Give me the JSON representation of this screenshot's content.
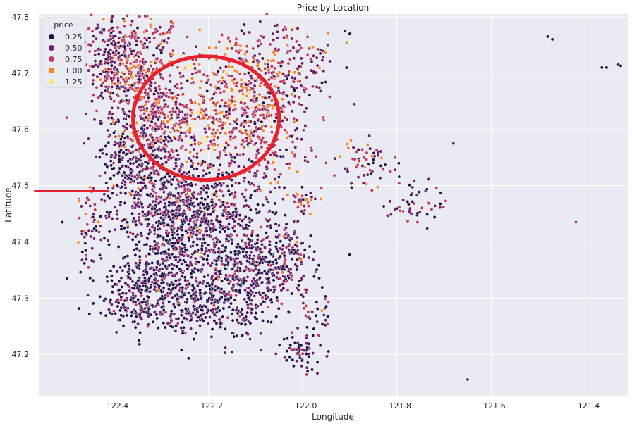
{
  "chart_data": {
    "type": "scatter",
    "title": "Price by Location",
    "xlabel": "Longitude",
    "ylabel": "Latitude",
    "xlim": [
      -122.56,
      -121.31
    ],
    "ylim": [
      47.125,
      47.805
    ],
    "grid": true,
    "x_ticks": [
      -122.4,
      -122.2,
      -122.0,
      -121.8,
      -121.6,
      -121.4
    ],
    "x_tick_labels": [
      "−122.4",
      "−122.2",
      "−122.0",
      "−121.8",
      "−121.6",
      "−121.4"
    ],
    "y_ticks": [
      47.2,
      47.3,
      47.4,
      47.5,
      47.6,
      47.7,
      47.8
    ],
    "y_tick_labels": [
      "47.2",
      "47.3",
      "47.4",
      "47.5",
      "47.6",
      "47.7",
      "47.8"
    ],
    "legend": {
      "title": "price",
      "placement": "top-left",
      "entries": [
        {
          "label": "0.25",
          "color": "#1f1147"
        },
        {
          "label": "0.50",
          "color": "#6d1c6b"
        },
        {
          "label": "0.75",
          "color": "#c0395a"
        },
        {
          "label": "1.00",
          "color": "#f6821f"
        },
        {
          "label": "1.25",
          "color": "#f7e57f"
        }
      ]
    },
    "colors": {
      "low": "#1f1147",
      "mid_low": "#6d1c6b",
      "mid": "#c0395a",
      "mid_high": "#f6821f",
      "high": "#f7e57f"
    },
    "clusters": [
      {
        "lon": -122.4,
        "lat": 47.72,
        "lon_spread": 0.03,
        "lat_spread": 0.05,
        "count": 260,
        "price": 0.55
      },
      {
        "lon": -122.34,
        "lat": 47.68,
        "lon_spread": 0.04,
        "lat_spread": 0.07,
        "count": 340,
        "price": 0.65
      },
      {
        "lon": -122.3,
        "lat": 47.6,
        "lon_spread": 0.04,
        "lat_spread": 0.06,
        "count": 300,
        "price": 0.6
      },
      {
        "lon": -122.19,
        "lat": 47.62,
        "lon_spread": 0.06,
        "lat_spread": 0.06,
        "count": 260,
        "price": 0.9
      },
      {
        "lon": -122.12,
        "lat": 47.67,
        "lon_spread": 0.06,
        "lat_spread": 0.06,
        "count": 260,
        "price": 0.75
      },
      {
        "lon": -122.08,
        "lat": 47.58,
        "lon_spread": 0.05,
        "lat_spread": 0.05,
        "count": 200,
        "price": 0.6
      },
      {
        "lon": -122.03,
        "lat": 47.72,
        "lon_spread": 0.05,
        "lat_spread": 0.04,
        "count": 160,
        "price": 0.6
      },
      {
        "lon": -122.36,
        "lat": 47.52,
        "lon_spread": 0.04,
        "lat_spread": 0.05,
        "count": 260,
        "price": 0.35
      },
      {
        "lon": -122.27,
        "lat": 47.47,
        "lon_spread": 0.05,
        "lat_spread": 0.04,
        "count": 280,
        "price": 0.35
      },
      {
        "lon": -122.18,
        "lat": 47.45,
        "lon_spread": 0.06,
        "lat_spread": 0.05,
        "count": 300,
        "price": 0.4
      },
      {
        "lon": -122.29,
        "lat": 47.38,
        "lon_spread": 0.05,
        "lat_spread": 0.05,
        "count": 300,
        "price": 0.3
      },
      {
        "lon": -122.15,
        "lat": 47.36,
        "lon_spread": 0.07,
        "lat_spread": 0.05,
        "count": 300,
        "price": 0.35
      },
      {
        "lon": -122.06,
        "lat": 47.36,
        "lon_spread": 0.04,
        "lat_spread": 0.03,
        "count": 160,
        "price": 0.4
      },
      {
        "lon": -122.35,
        "lat": 47.31,
        "lon_spread": 0.04,
        "lat_spread": 0.03,
        "count": 240,
        "price": 0.25
      },
      {
        "lon": -122.24,
        "lat": 47.29,
        "lon_spread": 0.05,
        "lat_spread": 0.03,
        "count": 200,
        "price": 0.3
      },
      {
        "lon": -122.13,
        "lat": 47.3,
        "lon_spread": 0.05,
        "lat_spread": 0.04,
        "count": 180,
        "price": 0.35
      },
      {
        "lon": -122.0,
        "lat": 47.2,
        "lon_spread": 0.02,
        "lat_spread": 0.015,
        "count": 60,
        "price": 0.35
      },
      {
        "lon": -122.0,
        "lat": 47.47,
        "lon_spread": 0.015,
        "lat_spread": 0.01,
        "count": 30,
        "price": 0.6
      },
      {
        "lon": -121.87,
        "lat": 47.54,
        "lon_spread": 0.03,
        "lat_spread": 0.02,
        "count": 60,
        "price": 0.6
      },
      {
        "lon": -121.76,
        "lat": 47.47,
        "lon_spread": 0.03,
        "lat_spread": 0.02,
        "count": 50,
        "price": 0.5
      },
      {
        "lon": -122.45,
        "lat": 47.42,
        "lon_spread": 0.015,
        "lat_spread": 0.04,
        "count": 50,
        "price": 0.6
      },
      {
        "lon": -121.98,
        "lat": 47.28,
        "lon_spread": 0.02,
        "lat_spread": 0.02,
        "count": 30,
        "price": 0.5
      },
      {
        "lon": -122.02,
        "lat": 47.4,
        "lon_spread": 0.02,
        "lat_spread": 0.02,
        "count": 40,
        "price": 0.5
      }
    ],
    "outliers": [
      {
        "lon": -121.48,
        "lat": 47.765,
        "price": 0.3
      },
      {
        "lon": -121.47,
        "lat": 47.76,
        "price": 0.3
      },
      {
        "lon": -121.365,
        "lat": 47.71,
        "price": 0.3
      },
      {
        "lon": -121.355,
        "lat": 47.71,
        "price": 0.3
      },
      {
        "lon": -121.325,
        "lat": 47.713,
        "price": 0.3
      },
      {
        "lon": -121.33,
        "lat": 47.715,
        "price": 0.3
      },
      {
        "lon": -121.42,
        "lat": 47.435,
        "price": 0.7
      },
      {
        "lon": -121.65,
        "lat": 47.155,
        "price": 0.6
      },
      {
        "lon": -121.68,
        "lat": 47.575,
        "price": 0.5
      },
      {
        "lon": -122.5,
        "lat": 47.335,
        "price": 0.3
      },
      {
        "lon": -122.51,
        "lat": 47.435,
        "price": 0.3
      },
      {
        "lon": -121.9,
        "lat": 47.77,
        "price": 0.3
      },
      {
        "lon": -121.91,
        "lat": 47.775,
        "price": 0.3
      },
      {
        "lon": -121.89,
        "lat": 47.645,
        "price": 0.4
      },
      {
        "lon": -121.95,
        "lat": 47.285,
        "price": 0.3
      }
    ]
  },
  "annotations": {
    "circle": {
      "lon": -122.205,
      "lat": 47.62,
      "lon_radius": 0.155,
      "lat_radius": 0.11,
      "color": "#e8222c"
    },
    "line": {
      "lon_start": -122.57,
      "lon_end": -122.41,
      "lat": 47.49,
      "color": "#e8222c"
    }
  }
}
